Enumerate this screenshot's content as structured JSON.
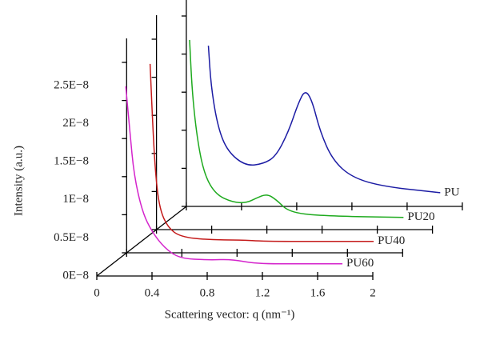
{
  "chart_data": {
    "type": "waterfall-line",
    "xlabel": "Scattering vector: q (nm⁻¹)",
    "ylabel": "Intensity (a.u.)",
    "xlim": [
      0,
      2
    ],
    "xticks": [
      0,
      0.4,
      0.8,
      1.2,
      1.6,
      2
    ],
    "ylim": [
      0,
      2.5e-08
    ],
    "yticks": [
      {
        "value": 0,
        "label": "0E−8"
      },
      {
        "value": 5e-09,
        "label": "0.5E−8"
      },
      {
        "value": 1e-08,
        "label": "1E−8"
      },
      {
        "value": 1.5e-08,
        "label": "1.5E−8"
      },
      {
        "value": 2e-08,
        "label": "2E−8"
      },
      {
        "value": 2.5e-08,
        "label": "2.5E−8"
      }
    ],
    "series": [
      {
        "name": "PU",
        "color": "#1c1ca4",
        "x": [
          0.16,
          0.18,
          0.23,
          0.3,
          0.43,
          0.56,
          0.65,
          0.74,
          0.81,
          0.86,
          0.91,
          0.97,
          1.06,
          1.2,
          1.43,
          1.84
        ],
        "values": [
          2.11e-08,
          1.56e-08,
          1.03e-08,
          7.2e-09,
          5.3e-09,
          5.6e-09,
          6.6e-09,
          9.8e-09,
          1.35e-08,
          1.53e-08,
          1.4e-08,
          9.8e-09,
          6.1e-09,
          3.8e-09,
          2.6e-09,
          1.8e-09
        ]
      },
      {
        "name": "PU20",
        "color": "#1eaa1e",
        "x": [
          0.24,
          0.26,
          0.3,
          0.35,
          0.43,
          0.55,
          0.65,
          0.72,
          0.8,
          0.87,
          0.96,
          1.19,
          1.79
        ],
        "values": [
          2.49e-08,
          1.76e-08,
          1.13e-08,
          7.1e-09,
          4.6e-09,
          3.6e-09,
          3.5e-09,
          4.1e-09,
          4.7e-09,
          3.9e-09,
          2.3e-09,
          1.8e-09,
          1.6e-09
        ]
      },
      {
        "name": "PU40",
        "color": "#c41a1a",
        "x": [
          0.17,
          0.19,
          0.21,
          0.24,
          0.3,
          0.39,
          0.59,
          0.82,
          1.0,
          1.4,
          1.79
        ],
        "values": [
          2.48e-08,
          1.64e-08,
          1.01e-08,
          5.7e-09,
          3.3e-09,
          2.1e-09,
          1.7e-09,
          1.7e-09,
          1.5e-09,
          1.5e-09,
          1.5e-09
        ]
      },
      {
        "name": "PU60",
        "color": "#d424cc",
        "x": [
          0.21,
          0.24,
          0.27,
          0.33,
          0.4,
          0.49,
          0.6,
          0.81,
          0.98,
          1.15,
          1.5,
          1.78
        ],
        "values": [
          2.49e-08,
          1.89e-08,
          1.32e-08,
          8.4e-09,
          5.8e-09,
          3.7e-09,
          2.3e-09,
          2.1e-09,
          2.2e-09,
          1.6e-09,
          1.6e-09,
          1.6e-09
        ]
      }
    ]
  }
}
